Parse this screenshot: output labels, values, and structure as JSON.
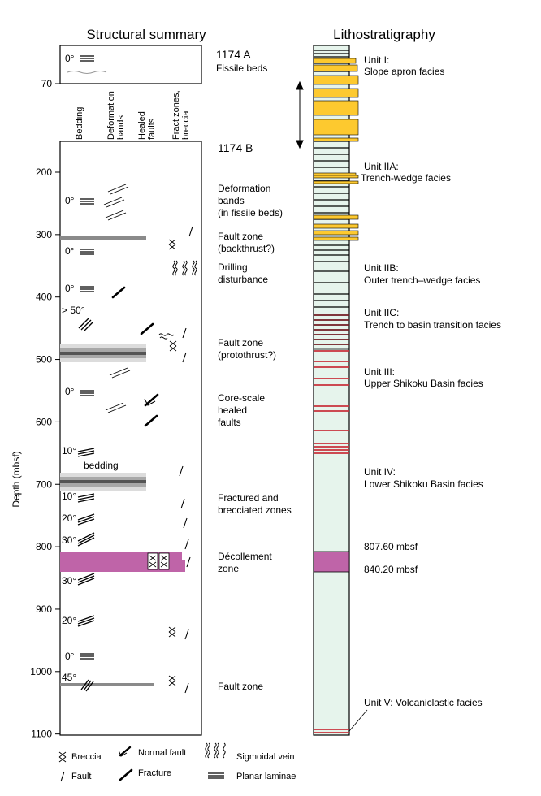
{
  "titles": {
    "structural": "Structural summary",
    "litho": "Lithostratigraphy"
  },
  "y_axis": {
    "label": "Depth (mbsf)",
    "ticks": [
      70,
      200,
      300,
      400,
      500,
      600,
      700,
      800,
      900,
      1000,
      1100
    ]
  },
  "holes": {
    "a": "1174 A",
    "a_note": "Fissile beds",
    "b": "1174 B"
  },
  "columns": [
    "Bedding",
    "Deformation bands",
    "Healed faults",
    "Fract zones, breccia"
  ],
  "dips": [
    "0°",
    "0°",
    "0°",
    "0°",
    "> 50°",
    "0°",
    "10°",
    "10°",
    "20°",
    "30°",
    "30°",
    "20°",
    "0°",
    "45°"
  ],
  "bedding_label": "bedding",
  "structure_notes": [
    "Deformation bands (in fissile beds)",
    "Fault zone (backthrust?)",
    "Drilling disturbance",
    "Fault zone (protothrust?)",
    "Core-scale healed faults",
    "Fractured and brecciated zones",
    "Décollement zone",
    "Fault zone"
  ],
  "units": [
    {
      "name": "Unit I:",
      "facies": "Slope apron facies"
    },
    {
      "name": "Unit IIA:",
      "facies": "Trench-wedge facies"
    },
    {
      "name": "Unit IIB:",
      "facies": "Outer trench–wedge facies"
    },
    {
      "name": "Unit IIC:",
      "facies": "Trench to basin transition facies"
    },
    {
      "name": "Unit III:",
      "facies": "Upper Shikoku Basin facies"
    },
    {
      "name": "Unit IV:",
      "facies": "Lower Shikoku Basin facies"
    },
    {
      "name": "Unit V: Volcaniclastic facies",
      "facies": ""
    }
  ],
  "decollement": {
    "top": "807.60 mbsf",
    "bottom": "840.20 mbsf"
  },
  "legend": {
    "breccia": "Breccia",
    "normal_fault": "Normal fault",
    "sigmoidal_vein": "Sigmoidal vein",
    "fault": "Fault",
    "fracture": "Fracture",
    "planar_laminae": "Planar laminae"
  },
  "colors": {
    "sand_yellow": "#fdc92f",
    "column_fill": "#e6f4ec",
    "red_lines": "#c8323c",
    "decollement": "#bf64a8",
    "fault_gray": "#808080"
  }
}
